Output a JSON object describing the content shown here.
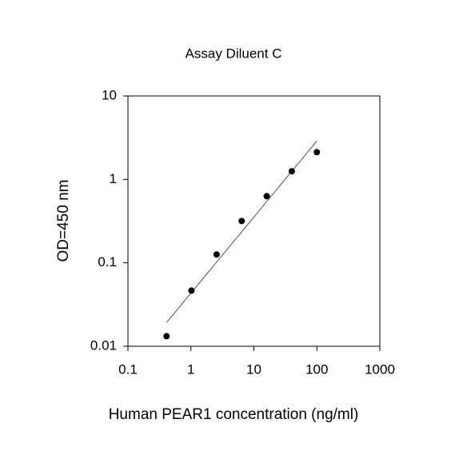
{
  "chart_data": {
    "type": "scatter",
    "title": "Assay Diluent C",
    "x_label": "Human PEAR1 concentration (ng/ml)",
    "y_label": "OD=450 nm",
    "x": [
      0.41,
      1.02,
      2.56,
      6.4,
      16,
      40,
      100
    ],
    "values": [
      0.0132,
      0.0465,
      0.126,
      0.317,
      0.63,
      1.25,
      2.12
    ],
    "color": "#000000",
    "fit": {
      "x": [
        0.41,
        100
      ],
      "values": [
        0.0192,
        2.89
      ],
      "color": "#555555"
    },
    "xscale": "log",
    "yscale": "log",
    "xlim": [
      0.1,
      1000
    ],
    "ylim": [
      0.01,
      10
    ],
    "xticks": [
      0.1,
      1,
      10,
      100,
      1000
    ],
    "yticks": [
      0.01,
      0.1,
      1,
      10
    ]
  }
}
